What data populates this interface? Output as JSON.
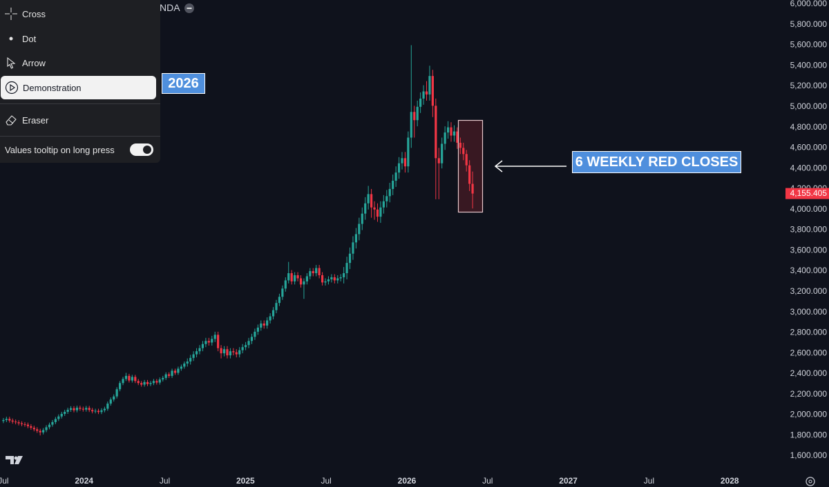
{
  "header": {
    "symbol_fragment": "NDA"
  },
  "menu": {
    "items": [
      "Cross",
      "Dot",
      "Arrow",
      "Demonstration",
      "Eraser"
    ],
    "selected": "Demonstration",
    "toggle_label": "Values tooltip on long press",
    "toggle_on": true
  },
  "chart_data": {
    "type": "candlestick",
    "up_color": "#26a69a",
    "down_color": "#f23645",
    "grid": false,
    "xlim": [
      2023.479,
      2028.337
    ],
    "xticks": [
      {
        "value": 2023.5,
        "label": "Jul"
      },
      2024,
      {
        "value": 2024.5,
        "label": "Jul"
      },
      2025,
      {
        "value": 2025.5,
        "label": "Jul"
      },
      2026,
      {
        "value": 2026.5,
        "label": "Jul"
      },
      2027,
      {
        "value": 2027.5,
        "label": "Jul"
      },
      2028
    ],
    "ylim": [
      1439,
      6040
    ],
    "yticks": [
      {
        "value": 1600,
        "label": "1,600.000"
      },
      {
        "value": 1800,
        "label": "1,800.000"
      },
      {
        "value": 2000,
        "label": "2,000.000"
      },
      {
        "value": 2200,
        "label": "2,200.000"
      },
      {
        "value": 2400,
        "label": "2,400.000"
      },
      {
        "value": 2600,
        "label": "2,600.000"
      },
      {
        "value": 2800,
        "label": "2,800.000"
      },
      {
        "value": 3000,
        "label": "3,000.000"
      },
      {
        "value": 3200,
        "label": "3,200.000"
      },
      {
        "value": 3400,
        "label": "3,400.000"
      },
      {
        "value": 3600,
        "label": "3,600.000"
      },
      {
        "value": 3800,
        "label": "3,800.000"
      },
      {
        "value": 4000,
        "label": "4,000.000"
      },
      {
        "value": 4200,
        "label": "4,200.000"
      },
      {
        "value": 4400,
        "label": "4,400.000"
      },
      {
        "value": 4600,
        "label": "4,600.000"
      },
      {
        "value": 4800,
        "label": "4,800.000"
      },
      {
        "value": 5000,
        "label": "5,000.000"
      },
      {
        "value": 5200,
        "label": "5,200.000"
      },
      {
        "value": 5400,
        "label": "5,400.000"
      },
      {
        "value": 5600,
        "label": "5,600.000"
      },
      {
        "value": 5800,
        "label": "5,800.000"
      },
      {
        "value": 6000,
        "label": "6,000.000"
      }
    ],
    "last_price": {
      "value": 4155.405,
      "label": "4,155.405"
    },
    "annotations": [
      {
        "text": "2026"
      },
      {
        "text": "6 WEEKLY RED CLOSES"
      }
    ],
    "x": [
      2023.5,
      2023.519,
      2023.538,
      2023.557,
      2023.576,
      2023.595,
      2023.614,
      2023.633,
      2023.652,
      2023.671,
      2023.69,
      2023.709,
      2023.728,
      2023.747,
      2023.766,
      2023.785,
      2023.804,
      2023.823,
      2023.842,
      2023.861,
      2023.88,
      2023.899,
      2023.918,
      2023.937,
      2023.956,
      2023.975,
      2023.994,
      2024.013,
      2024.032,
      2024.051,
      2024.07,
      2024.089,
      2024.108,
      2024.127,
      2024.146,
      2024.165,
      2024.184,
      2024.203,
      2024.222,
      2024.241,
      2024.26,
      2024.279,
      2024.298,
      2024.317,
      2024.336,
      2024.355,
      2024.374,
      2024.393,
      2024.412,
      2024.431,
      2024.45,
      2024.469,
      2024.488,
      2024.507,
      2024.526,
      2024.545,
      2024.564,
      2024.583,
      2024.602,
      2024.621,
      2024.64,
      2024.659,
      2024.678,
      2024.697,
      2024.716,
      2024.735,
      2024.754,
      2024.773,
      2024.792,
      2024.811,
      2024.83,
      2024.849,
      2024.868,
      2024.887,
      2024.906,
      2024.925,
      2024.944,
      2024.963,
      2024.982,
      2025.001,
      2025.02,
      2025.039,
      2025.058,
      2025.077,
      2025.096,
      2025.115,
      2025.134,
      2025.153,
      2025.172,
      2025.191,
      2025.21,
      2025.229,
      2025.248,
      2025.267,
      2025.286,
      2025.305,
      2025.324,
      2025.343,
      2025.362,
      2025.381,
      2025.4,
      2025.419,
      2025.438,
      2025.457,
      2025.476,
      2025.495,
      2025.514,
      2025.533,
      2025.552,
      2025.571,
      2025.59,
      2025.609,
      2025.628,
      2025.647,
      2025.666,
      2025.685,
      2025.704,
      2025.723,
      2025.742,
      2025.761,
      2025.78,
      2025.799,
      2025.818,
      2025.837,
      2025.856,
      2025.875,
      2025.894,
      2025.913,
      2025.932,
      2025.951,
      2025.97,
      2025.989,
      2026.008,
      2026.027,
      2026.046,
      2026.065,
      2026.084,
      2026.103,
      2026.122,
      2026.141,
      2026.16,
      2026.179,
      2026.198,
      2026.217,
      2026.236,
      2026.255,
      2026.274,
      2026.293,
      2026.312,
      2026.331,
      2026.35,
      2026.369,
      2026.388,
      2026.407
    ],
    "open": [
      1940,
      1950,
      1962,
      1945,
      1935,
      1928,
      1918,
      1910,
      1905,
      1890,
      1875,
      1860,
      1845,
      1830,
      1852,
      1880,
      1905,
      1930,
      1960,
      1985,
      2010,
      2030,
      2050,
      2065,
      2045,
      2070,
      2060,
      2052,
      2068,
      2048,
      2035,
      2040,
      2028,
      2045,
      2060,
      2110,
      2150,
      2180,
      2250,
      2310,
      2350,
      2380,
      2335,
      2370,
      2330,
      2310,
      2295,
      2320,
      2300,
      2310,
      2330,
      2315,
      2345,
      2360,
      2395,
      2380,
      2430,
      2410,
      2450,
      2470,
      2500,
      2520,
      2555,
      2590,
      2620,
      2650,
      2690,
      2720,
      2705,
      2740,
      2780,
      2650,
      2600,
      2640,
      2580,
      2620,
      2610,
      2590,
      2630,
      2660,
      2680,
      2720,
      2760,
      2810,
      2850,
      2890,
      2870,
      2920,
      2960,
      3020,
      3090,
      3150,
      3230,
      3310,
      3380,
      3300,
      3360,
      3330,
      3270,
      3300,
      3350,
      3400,
      3380,
      3430,
      3360,
      3290,
      3300,
      3320,
      3340,
      3310,
      3330,
      3340,
      3380,
      3480,
      3570,
      3680,
      3760,
      3860,
      3960,
      4060,
      4150,
      4020,
      4000,
      3930,
      4020,
      4080,
      4130,
      4200,
      4280,
      4360,
      4450,
      4500,
      4420,
      4700,
      4950,
      4870,
      5000,
      5080,
      5150,
      5120,
      5300,
      5010,
      4500,
      4450,
      4640,
      4750,
      4800,
      4720,
      4760,
      4650,
      4600,
      4540,
      4430,
      4250
    ],
    "high": [
      1970,
      1982,
      1982,
      1965,
      1955,
      1948,
      1938,
      1930,
      1925,
      1910,
      1895,
      1880,
      1865,
      1872,
      1900,
      1925,
      1950,
      1980,
      2005,
      2030,
      2050,
      2070,
      2085,
      2085,
      2090,
      2090,
      2080,
      2088,
      2088,
      2068,
      2060,
      2060,
      2065,
      2080,
      2130,
      2170,
      2200,
      2270,
      2330,
      2370,
      2410,
      2400,
      2390,
      2390,
      2350,
      2330,
      2340,
      2340,
      2330,
      2350,
      2350,
      2365,
      2380,
      2415,
      2415,
      2450,
      2450,
      2470,
      2490,
      2520,
      2550,
      2585,
      2620,
      2650,
      2680,
      2720,
      2750,
      2750,
      2770,
      2810,
      2810,
      2680,
      2670,
      2670,
      2650,
      2650,
      2640,
      2660,
      2690,
      2710,
      2750,
      2790,
      2840,
      2880,
      2920,
      2920,
      2950,
      2990,
      3050,
      3120,
      3180,
      3260,
      3340,
      3490,
      3410,
      3390,
      3390,
      3360,
      3330,
      3380,
      3430,
      3430,
      3460,
      3460,
      3390,
      3330,
      3350,
      3370,
      3370,
      3360,
      3370,
      3440,
      3540,
      3630,
      3740,
      3820,
      3920,
      4020,
      4120,
      4230,
      4200,
      4080,
      4060,
      4080,
      4140,
      4190,
      4260,
      4340,
      4420,
      4510,
      4560,
      4560,
      4760,
      5600,
      5010,
      5060,
      5140,
      5210,
      5250,
      5400,
      5360,
      5080,
      4600,
      4700,
      4810,
      4860,
      4850,
      4820,
      4800,
      4700,
      4650,
      4580,
      4480,
      4370
    ],
    "low": [
      1920,
      1930,
      1925,
      1915,
      1908,
      1898,
      1890,
      1885,
      1870,
      1855,
      1840,
      1825,
      1800,
      1810,
      1832,
      1860,
      1885,
      1910,
      1940,
      1965,
      1990,
      2010,
      2030,
      2025,
      2025,
      2040,
      2032,
      2032,
      2028,
      2015,
      2015,
      2008,
      2008,
      2025,
      2040,
      2090,
      2130,
      2160,
      2230,
      2290,
      2330,
      2315,
      2315,
      2310,
      2290,
      2275,
      2275,
      2280,
      2280,
      2290,
      2295,
      2295,
      2325,
      2340,
      2360,
      2360,
      2390,
      2390,
      2430,
      2450,
      2470,
      2490,
      2525,
      2560,
      2590,
      2620,
      2660,
      2675,
      2675,
      2710,
      2620,
      2550,
      2570,
      2550,
      2550,
      2580,
      2560,
      2560,
      2600,
      2630,
      2650,
      2690,
      2730,
      2780,
      2820,
      2840,
      2840,
      2890,
      2930,
      2990,
      3060,
      3120,
      3200,
      3280,
      3270,
      3270,
      3300,
      3240,
      3130,
      3270,
      3320,
      3350,
      3350,
      3330,
      3260,
      3260,
      3270,
      3290,
      3280,
      3280,
      3300,
      3280,
      3320,
      3420,
      3510,
      3620,
      3700,
      3800,
      3900,
      4000,
      3920,
      3900,
      3880,
      3870,
      3960,
      4020,
      4070,
      4140,
      4220,
      4300,
      4390,
      4360,
      4360,
      4600,
      4700,
      4810,
      4940,
      5020,
      5060,
      5060,
      4900,
      4100,
      4100,
      4400,
      4580,
      4690,
      4660,
      4660,
      4590,
      4540,
      4480,
      4370,
      4180,
      4010
    ],
    "close": [
      1950,
      1962,
      1945,
      1935,
      1928,
      1918,
      1910,
      1905,
      1890,
      1875,
      1860,
      1845,
      1830,
      1852,
      1880,
      1905,
      1930,
      1960,
      1985,
      2010,
      2030,
      2050,
      2065,
      2045,
      2070,
      2060,
      2052,
      2068,
      2048,
      2035,
      2040,
      2028,
      2045,
      2060,
      2110,
      2150,
      2180,
      2250,
      2310,
      2350,
      2380,
      2335,
      2370,
      2330,
      2310,
      2295,
      2320,
      2300,
      2310,
      2330,
      2315,
      2345,
      2360,
      2395,
      2380,
      2430,
      2410,
      2450,
      2470,
      2500,
      2520,
      2555,
      2590,
      2620,
      2650,
      2690,
      2720,
      2705,
      2740,
      2780,
      2650,
      2600,
      2640,
      2580,
      2620,
      2610,
      2590,
      2630,
      2660,
      2680,
      2720,
      2760,
      2810,
      2850,
      2890,
      2870,
      2920,
      2960,
      3020,
      3090,
      3150,
      3230,
      3310,
      3380,
      3300,
      3360,
      3330,
      3270,
      3300,
      3350,
      3400,
      3380,
      3430,
      3360,
      3290,
      3300,
      3320,
      3340,
      3310,
      3330,
      3340,
      3380,
      3480,
      3570,
      3680,
      3760,
      3860,
      3960,
      4060,
      4150,
      4020,
      4000,
      3930,
      4020,
      4080,
      4130,
      4200,
      4280,
      4360,
      4450,
      4500,
      4420,
      4700,
      4950,
      4870,
      5000,
      5080,
      5150,
      5120,
      5300,
      5010,
      4500,
      4450,
      4640,
      4750,
      4800,
      4720,
      4760,
      4650,
      4600,
      4540,
      4430,
      4250,
      4155.405
    ]
  }
}
